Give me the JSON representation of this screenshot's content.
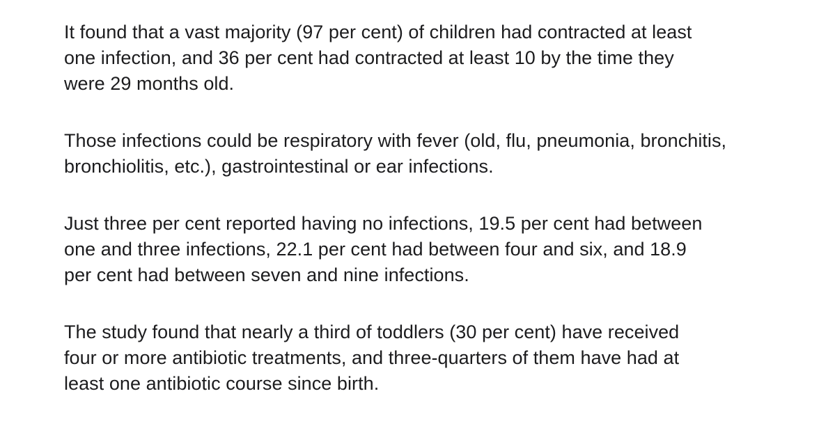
{
  "article": {
    "paragraphs": [
      {
        "lines": [
          "It found that a vast majority (97 per cent) of children had contracted at least",
          "one infection, and 36 per cent had contracted at least 10 by the time they",
          "were 29 months old."
        ]
      },
      {
        "lines": [
          "Those infections could be respiratory with fever (old, flu, pneumonia, bronchitis,",
          "bronchiolitis, etc.), gastrointestinal or ear infections."
        ]
      },
      {
        "lines": [
          "Just three per cent reported having no infections, 19.5 per cent had between",
          "one and three infections, 22.1 per cent had between four and six, and 18.9",
          "per cent had between seven and nine infections."
        ]
      },
      {
        "lines": [
          "The study found that nearly a third of toddlers (30 per cent) have received",
          "four or more antibiotic treatments, and three-quarters of them have had at",
          "least one antibiotic course since birth."
        ]
      }
    ]
  }
}
